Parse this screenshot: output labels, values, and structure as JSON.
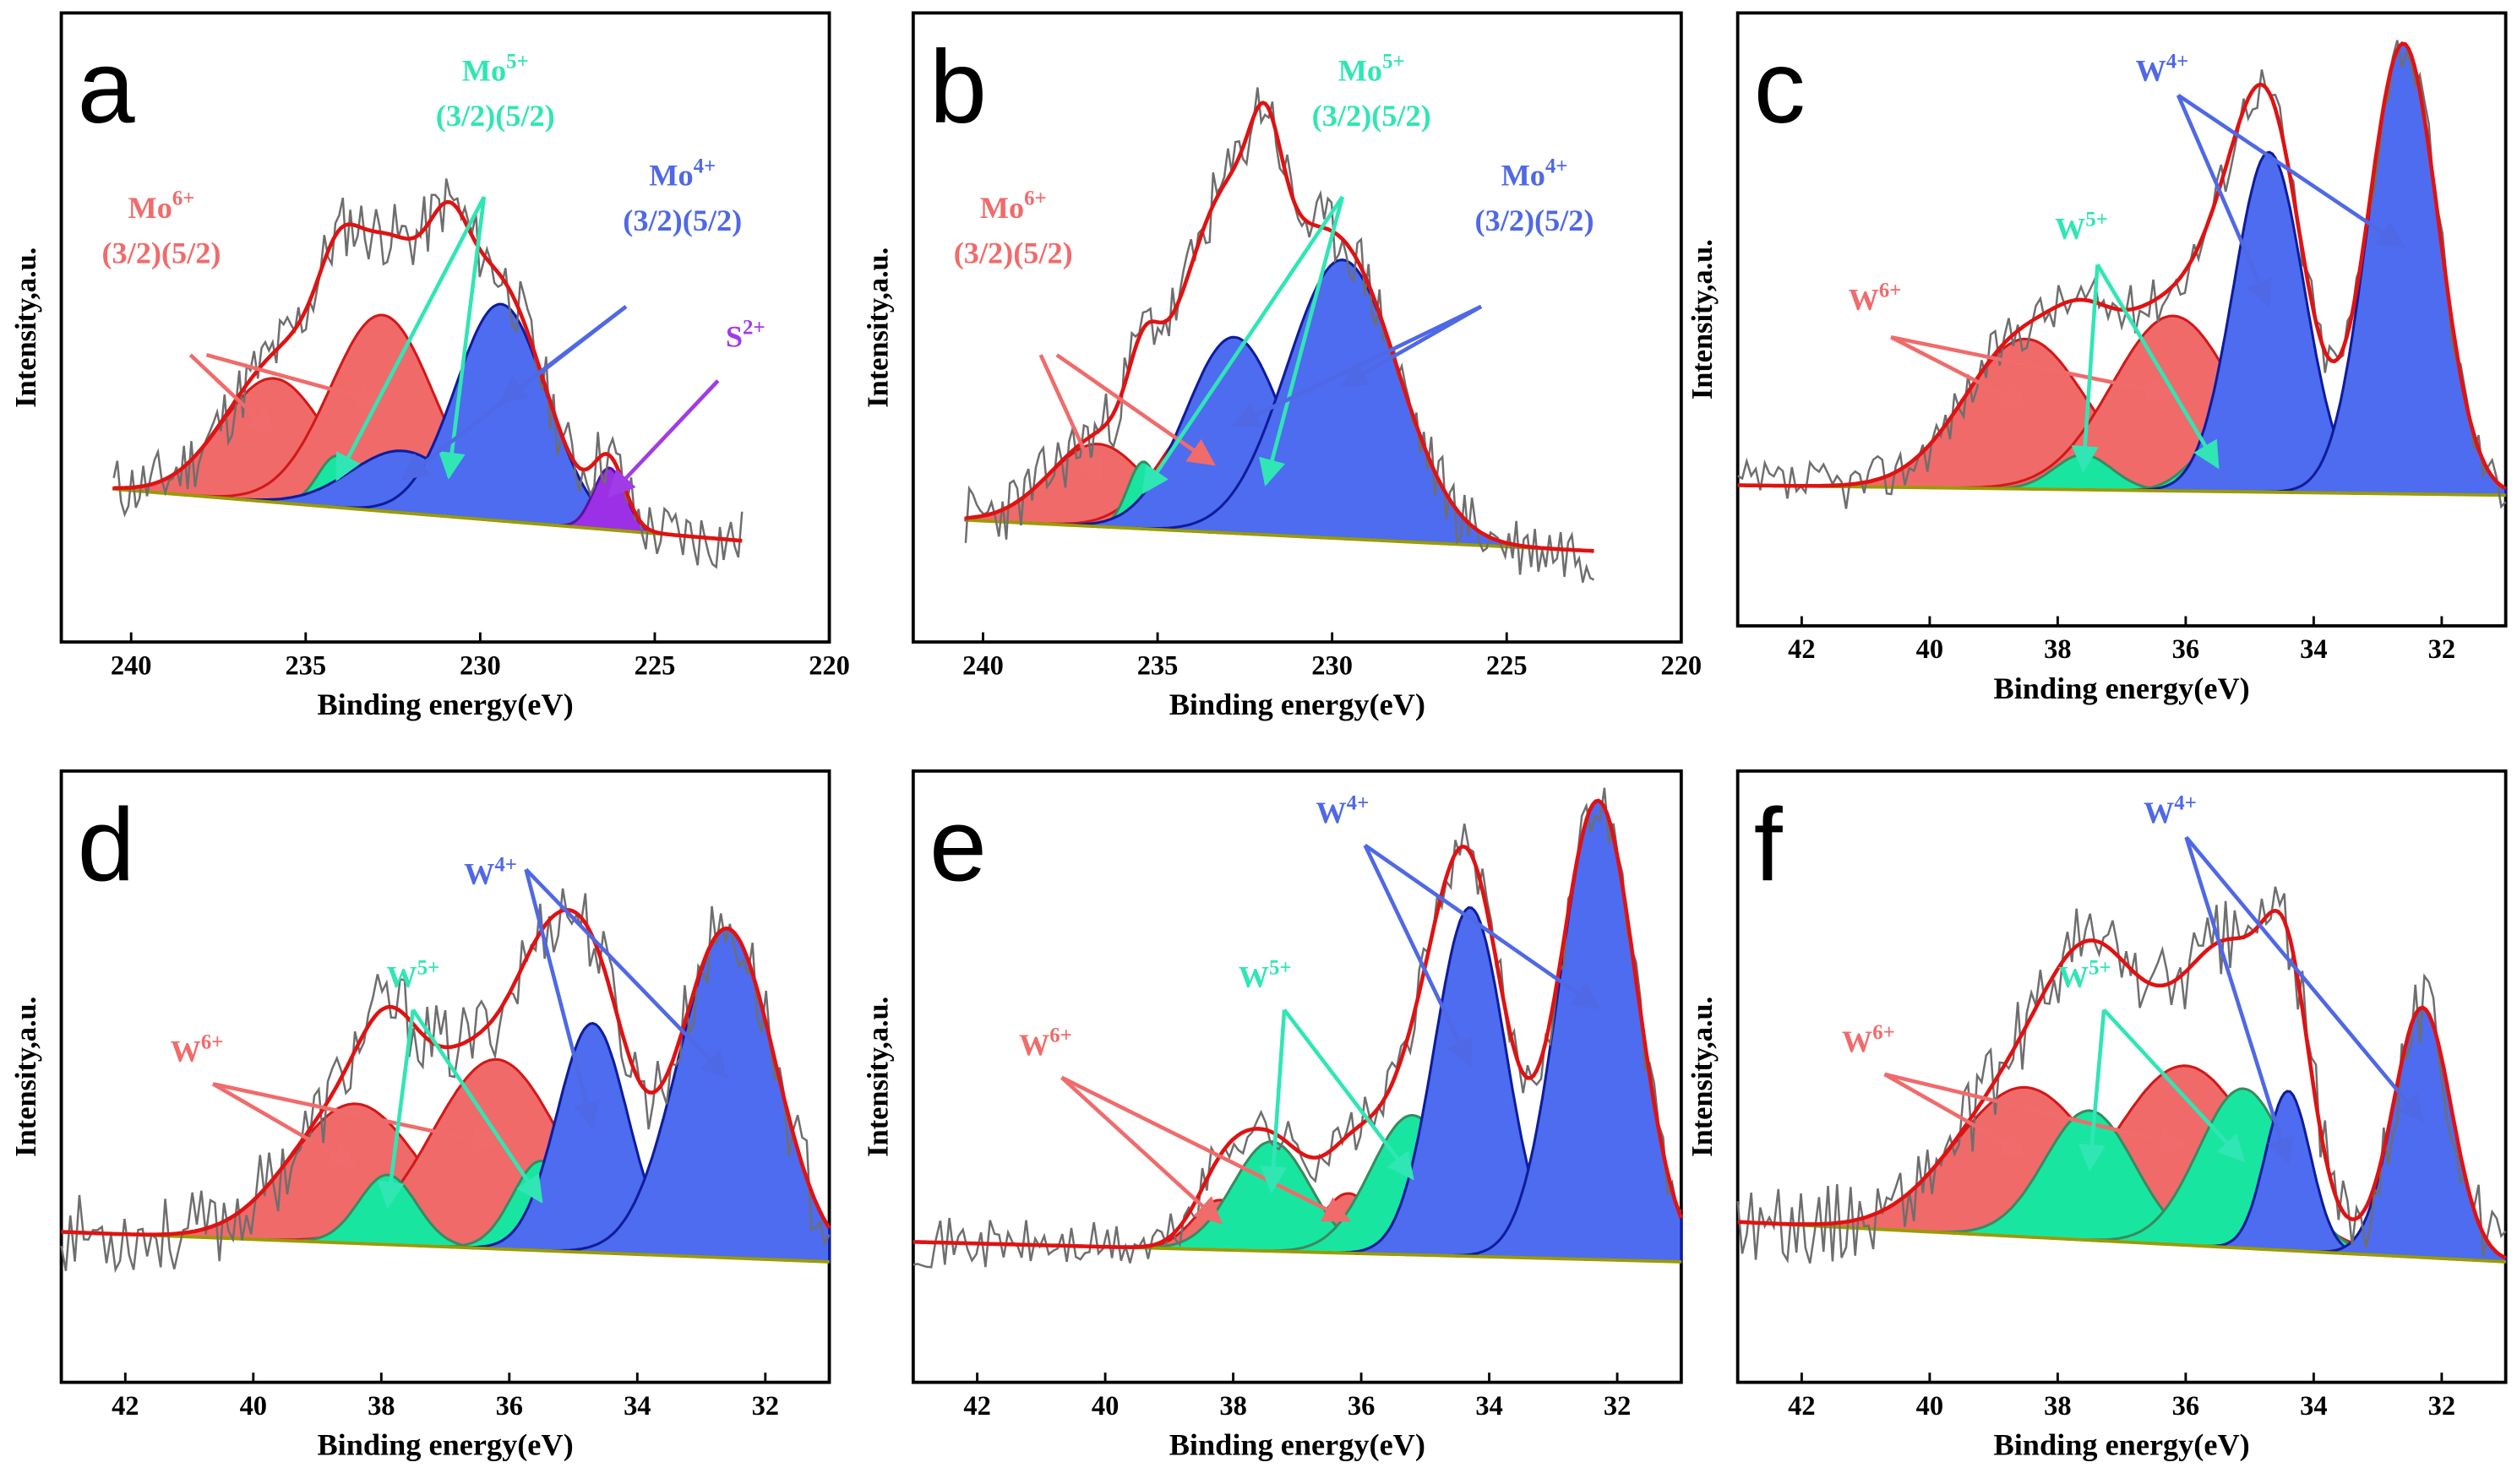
{
  "figure_type": "XPS multi-panel peak fitting",
  "colors": {
    "raw": "#6e6e6e",
    "envelope": "#e01212",
    "baseline": "#9b9b00",
    "red_fill": "#f06a6a",
    "red_edge": "#d21818",
    "green_fill": "#18e6a0",
    "green_edge": "#3a8a60",
    "blue_fill": "#4d6cf0",
    "blue_edge": "#0f1c9c",
    "purple_fill": "#9b30e6",
    "purple_edge": "#5a12a0",
    "red_label": "#f06b6b",
    "green_label": "#30e6b4",
    "blue_label": "#4f68e6",
    "purple_label": "#a13be6"
  },
  "chart_data": [
    {
      "panel": "a",
      "type": "line",
      "title": "",
      "xlabel": "Binding energy(eV)",
      "ylabel": "Intensity,a.u.",
      "xlim": [
        242,
        220
      ],
      "ylim": [
        0,
        100
      ],
      "xticks": [
        240,
        235,
        230,
        225,
        220
      ],
      "data_range": [
        240.5,
        222.5
      ],
      "baseline": [
        14,
        4
      ],
      "noise": 6.5,
      "seed": 11,
      "components": [
        {
          "name": "Mo6+ 3/2",
          "family": "red",
          "center": 235.9,
          "height": 24,
          "width": 1.5
        },
        {
          "name": "Mo6+ 5/2",
          "family": "red",
          "center": 232.8,
          "height": 38,
          "width": 1.5
        },
        {
          "name": "Mo5+ 3/2",
          "family": "green",
          "center": 234.1,
          "height": 10,
          "width": 0.55
        },
        {
          "name": "Mo5+ 5/2",
          "family": "green",
          "center": 230.9,
          "height": 14,
          "width": 0.55
        },
        {
          "name": "Mo4+ 3/2",
          "family": "blue",
          "center": 232.2,
          "height": 12,
          "width": 1.5
        },
        {
          "name": "Mo4+ 5/2",
          "family": "blue",
          "center": 229.4,
          "height": 42,
          "width": 1.3
        },
        {
          "name": "S2+",
          "family": "purple",
          "center": 226.3,
          "height": 12,
          "width": 0.45
        }
      ],
      "annotations": [
        {
          "family": "red",
          "main": "Mo",
          "sup": "6+",
          "sub": "(3/2)(5/2)"
        },
        {
          "family": "green",
          "main": "Mo",
          "sup": "5+",
          "sub": "(3/2)(5/2)"
        },
        {
          "family": "blue",
          "main": "Mo",
          "sup": "4+",
          "sub": "(3/2)(5/2)"
        },
        {
          "family": "purple",
          "main": "S",
          "sup": "2+",
          "sub": ""
        }
      ]
    },
    {
      "panel": "b",
      "type": "line",
      "title": "",
      "xlabel": "Binding energy(eV)",
      "ylabel": "Intensity,a.u.",
      "xlim": [
        242,
        220
      ],
      "ylim": [
        0,
        100
      ],
      "xticks": [
        240,
        235,
        230,
        225,
        220
      ],
      "data_range": [
        240.5,
        222.5
      ],
      "baseline": [
        8,
        2
      ],
      "noise": 6.5,
      "seed": 23,
      "components": [
        {
          "name": "Mo6+ 3/2",
          "family": "red",
          "center": 236.7,
          "height": 16,
          "width": 1.4
        },
        {
          "name": "Mo6+ 5/2",
          "family": "red",
          "center": 233.4,
          "height": 24,
          "width": 1.4
        },
        {
          "name": "Mo5+ 3/2",
          "family": "green",
          "center": 235.4,
          "height": 13,
          "width": 0.45
        },
        {
          "name": "Mo5+ 5/2",
          "family": "green",
          "center": 231.9,
          "height": 18,
          "width": 0.45
        },
        {
          "name": "Mo4+ 3/2",
          "family": "blue",
          "center": 232.8,
          "height": 38,
          "width": 1.4
        },
        {
          "name": "Mo4+ 5/2",
          "family": "blue",
          "center": 229.7,
          "height": 54,
          "width": 1.6
        }
      ],
      "annotations": [
        {
          "family": "red",
          "main": "Mo",
          "sup": "6+",
          "sub": "(3/2)(5/2)"
        },
        {
          "family": "green",
          "main": "Mo",
          "sup": "5+",
          "sub": "(3/2)(5/2)"
        },
        {
          "family": "blue",
          "main": "Mo",
          "sup": "4+",
          "sub": "(3/2)(5/2)"
        }
      ]
    },
    {
      "panel": "c",
      "type": "line",
      "title": "",
      "xlabel": "Binding energy(eV)",
      "ylabel": "Intensity,a.u.",
      "xlim": [
        43,
        31
      ],
      "ylim": [
        0,
        100
      ],
      "xticks": [
        42,
        40,
        38,
        36,
        34,
        32
      ],
      "data_range": [
        43,
        31
      ],
      "baseline": [
        12,
        10
      ],
      "noise": 5,
      "seed": 37,
      "components": [
        {
          "name": "W6+ 7/2",
          "family": "red",
          "center": 38.5,
          "height": 30,
          "width": 0.95
        },
        {
          "name": "W6+ 5/2",
          "family": "red",
          "center": 36.2,
          "height": 35,
          "width": 0.95
        },
        {
          "name": "W5+ 7/2",
          "family": "green",
          "center": 37.6,
          "height": 7,
          "width": 0.45
        },
        {
          "name": "W5+ 5/2",
          "family": "green",
          "center": 35.5,
          "height": 9,
          "width": 0.45
        },
        {
          "name": "W4+ 7/2",
          "family": "blue",
          "center": 34.7,
          "height": 68,
          "width": 0.55
        },
        {
          "name": "W4+ 5/2",
          "family": "blue",
          "center": 32.6,
          "height": 90,
          "width": 0.55
        }
      ],
      "annotations": [
        {
          "family": "red",
          "main": "W",
          "sup": "6+",
          "sub": ""
        },
        {
          "family": "green",
          "main": "W",
          "sup": "5+",
          "sub": ""
        },
        {
          "family": "blue",
          "main": "W",
          "sup": "4+",
          "sub": ""
        }
      ]
    },
    {
      "panel": "d",
      "type": "line",
      "title": "",
      "xlabel": "Binding energy(eV)",
      "ylabel": "Intensity,a.u.",
      "xlim": [
        43,
        31
      ],
      "ylim": [
        0,
        100
      ],
      "xticks": [
        42,
        40,
        38,
        36,
        34,
        32
      ],
      "data_range": [
        43,
        31
      ],
      "baseline": [
        14,
        8
      ],
      "noise": 8,
      "seed": 53,
      "components": [
        {
          "name": "W6+ 7/2",
          "family": "red",
          "center": 38.4,
          "height": 28,
          "width": 1.0
        },
        {
          "name": "W6+ 5/2",
          "family": "red",
          "center": 36.2,
          "height": 38,
          "width": 1.0
        },
        {
          "name": "W5+ 7/2",
          "family": "green",
          "center": 37.9,
          "height": 14,
          "width": 0.45
        },
        {
          "name": "W5+ 5/2",
          "family": "green",
          "center": 35.5,
          "height": 18,
          "width": 0.45
        },
        {
          "name": "W4+ 7/2",
          "family": "blue",
          "center": 34.7,
          "height": 46,
          "width": 0.55
        },
        {
          "name": "W4+ 5/2",
          "family": "blue",
          "center": 32.6,
          "height": 66,
          "width": 0.75
        }
      ],
      "annotations": [
        {
          "family": "red",
          "main": "W",
          "sup": "6+",
          "sub": ""
        },
        {
          "family": "green",
          "main": "W",
          "sup": "5+",
          "sub": ""
        },
        {
          "family": "blue",
          "main": "W",
          "sup": "4+",
          "sub": ""
        }
      ]
    },
    {
      "panel": "e",
      "type": "line",
      "title": "",
      "xlabel": "Binding energy(eV)",
      "ylabel": "Intensity,a.u.",
      "xlim": [
        43,
        31
      ],
      "ylim": [
        0,
        100
      ],
      "xticks": [
        42,
        40,
        38,
        36,
        34,
        32
      ],
      "data_range": [
        43,
        31
      ],
      "baseline": [
        12,
        8
      ],
      "noise": 5,
      "seed": 71,
      "components": [
        {
          "name": "W6+ 7/2",
          "family": "red",
          "center": 38.2,
          "height": 10,
          "width": 0.42
        },
        {
          "name": "W6+ 5/2",
          "family": "red",
          "center": 36.2,
          "height": 12,
          "width": 0.42
        },
        {
          "name": "W5+ 7/2",
          "family": "green",
          "center": 37.4,
          "height": 22,
          "width": 0.6
        },
        {
          "name": "W5+ 5/2",
          "family": "green",
          "center": 35.2,
          "height": 28,
          "width": 0.65
        },
        {
          "name": "W4+ 7/2",
          "family": "blue",
          "center": 34.3,
          "height": 70,
          "width": 0.55
        },
        {
          "name": "W4+ 5/2",
          "family": "blue",
          "center": 32.3,
          "height": 92,
          "width": 0.6
        }
      ],
      "annotations": [
        {
          "family": "red",
          "main": "W",
          "sup": "6+",
          "sub": ""
        },
        {
          "family": "green",
          "main": "W",
          "sup": "5+",
          "sub": ""
        },
        {
          "family": "blue",
          "main": "W",
          "sup": "4+",
          "sub": ""
        }
      ]
    },
    {
      "panel": "f",
      "type": "line",
      "title": "",
      "xlabel": "Binding energy(eV)",
      "ylabel": "Intensity,a.u.",
      "xlim": [
        43,
        31
      ],
      "ylim": [
        0,
        100
      ],
      "xticks": [
        42,
        40,
        38,
        36,
        34,
        32
      ],
      "data_range": [
        43,
        31
      ],
      "baseline": [
        16,
        8
      ],
      "noise": 8,
      "seed": 89,
      "components": [
        {
          "name": "W6+ 7/2",
          "family": "red",
          "center": 38.5,
          "height": 30,
          "width": 1.1
        },
        {
          "name": "W6+ 5/2",
          "family": "red",
          "center": 36.0,
          "height": 36,
          "width": 1.1
        },
        {
          "name": "W5+ 7/2",
          "family": "green",
          "center": 37.5,
          "height": 26,
          "width": 0.7
        },
        {
          "name": "W5+ 5/2",
          "family": "green",
          "center": 35.1,
          "height": 32,
          "width": 0.7
        },
        {
          "name": "W4+ 7/2",
          "family": "blue",
          "center": 34.4,
          "height": 32,
          "width": 0.35
        },
        {
          "name": "W4+ 5/2",
          "family": "blue",
          "center": 32.3,
          "height": 50,
          "width": 0.45
        }
      ],
      "annotations": [
        {
          "family": "red",
          "main": "W",
          "sup": "6+",
          "sub": ""
        },
        {
          "family": "green",
          "main": "W",
          "sup": "5+",
          "sub": ""
        },
        {
          "family": "blue",
          "main": "W",
          "sup": "4+",
          "sub": ""
        }
      ]
    }
  ]
}
